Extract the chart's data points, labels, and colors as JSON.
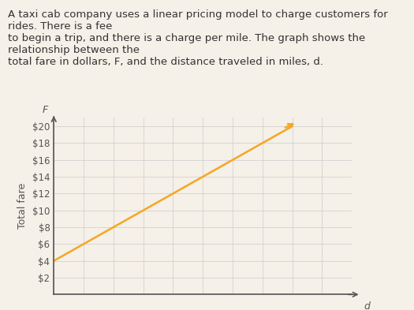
{
  "title_text": "A taxi cab company uses a linear pricing model to charge customers for rides. There is a fee\nto begin a trip, and there is a charge per mile. The graph shows the relationship between the\ntotal fare in dollars, F, and the distance traveled in miles, d.",
  "title_fontsize": 9.5,
  "title_color": "#333333",
  "ylabel": "Total fare",
  "ylabel_fontsize": 9,
  "ylabel_color": "#555555",
  "xlabel": "d",
  "xlabel_fontsize": 9,
  "xlabel_color": "#555555",
  "yaxis_label": "F",
  "yaxis_label_fontsize": 9,
  "yticks": [
    2,
    4,
    6,
    8,
    10,
    12,
    14,
    16,
    18,
    20
  ],
  "ytick_labels": [
    "$2",
    "$4",
    "$6",
    "$8",
    "$10",
    "$12",
    "$14",
    "$16",
    "$18",
    "$20"
  ],
  "ylim": [
    0,
    21
  ],
  "xlim": [
    0,
    10
  ],
  "xticks": [
    0,
    1,
    2,
    3,
    4,
    5,
    6,
    7,
    8,
    9,
    10
  ],
  "xtick_labels": [
    "",
    "",
    "",
    "",
    "",
    "",
    "",
    "",
    "",
    "",
    ""
  ],
  "line_x": [
    0,
    8
  ],
  "line_y": [
    4,
    20
  ],
  "line_color": "#F5A623",
  "line_width": 1.8,
  "grid_color": "#cccccc",
  "grid_linewidth": 0.5,
  "bg_color": "#f5f0e8",
  "plot_bg_color": "#f5f0e8",
  "arrow_color": "#555555",
  "tick_color": "#555555",
  "tick_fontsize": 8.5
}
